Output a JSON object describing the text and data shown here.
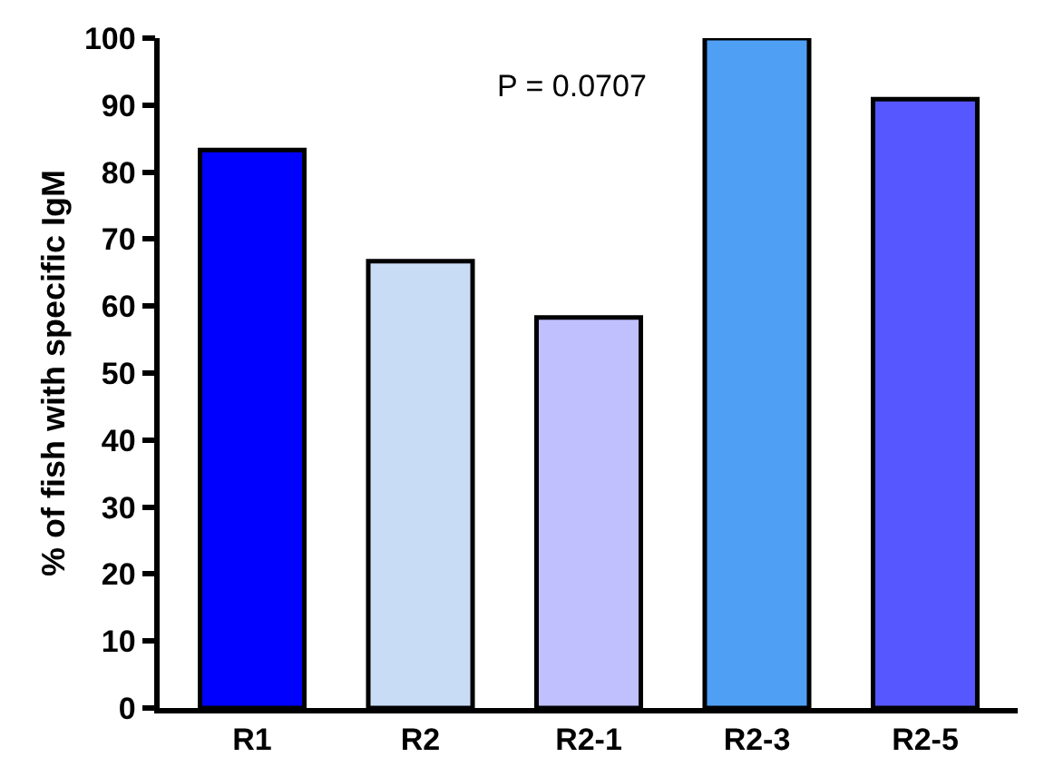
{
  "chart_data": {
    "type": "bar",
    "ylabel": "% of fish with specific IgM",
    "categories": [
      "R1",
      "R2",
      "R2-1",
      "R2-3",
      "R2-5"
    ],
    "values": [
      83.3,
      66.7,
      58.3,
      100,
      90.9
    ],
    "colors": [
      "#0000ff",
      "#c9dcf5",
      "#c0c0ff",
      "#4f9ff5",
      "#5757ff"
    ],
    "ylim": [
      0,
      100
    ],
    "yticks": [
      0,
      10,
      20,
      30,
      40,
      50,
      60,
      70,
      80,
      90,
      100
    ],
    "grid": false,
    "annotations": [
      "P = 0.0707"
    ]
  }
}
